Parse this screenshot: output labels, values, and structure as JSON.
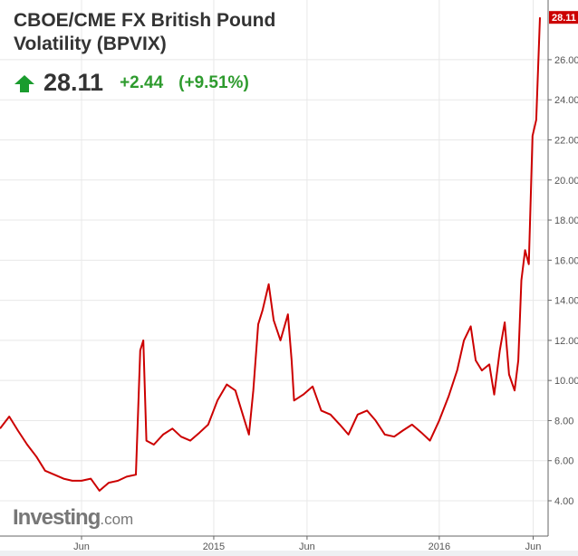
{
  "header": {
    "title": "CBOE/CME FX British Pound Volatility (BPVIX)",
    "price": "28.11",
    "change": "+2.44",
    "change_pct": "(+9.51%)",
    "direction_icon": "arrow-up-icon",
    "up_color": "#1a9c2e"
  },
  "logo": {
    "name": "Investing",
    "suffix": ".com"
  },
  "chart_data": {
    "type": "line",
    "title": "CBOE/CME FX British Pound Volatility (BPVIX)",
    "xlabel": "",
    "ylabel": "",
    "ylim": [
      3,
      28.6
    ],
    "xlim": [
      "2014-01-20",
      "2016-06-15"
    ],
    "y_ticks": [
      "4.00",
      "6.00",
      "8.00",
      "10.00",
      "12.00",
      "14.00",
      "16.00",
      "18.00",
      "20.00",
      "22.00",
      "24.00",
      "26.00"
    ],
    "x_ticks": [
      {
        "label": "Jun",
        "date": "2014-06-01"
      },
      {
        "label": "2015",
        "date": "2015-01-01"
      },
      {
        "label": "Jun",
        "date": "2015-06-01"
      },
      {
        "label": "2016",
        "date": "2016-01-01"
      },
      {
        "label": "Jun",
        "date": "2016-06-01"
      }
    ],
    "last_value_label": "28.11",
    "grid": true,
    "line_color": "#cc0000",
    "series": [
      {
        "x": [
          "2014-01-20",
          "2014-02-04",
          "2014-02-18",
          "2014-03-05",
          "2014-03-20",
          "2014-04-03",
          "2014-04-18",
          "2014-05-03",
          "2014-05-17",
          "2014-06-01",
          "2014-06-16",
          "2014-06-30",
          "2014-07-15",
          "2014-07-30",
          "2014-08-13",
          "2014-08-28",
          "2014-09-04",
          "2014-09-09",
          "2014-09-14",
          "2014-09-26",
          "2014-10-11",
          "2014-10-26",
          "2014-11-09",
          "2014-11-24",
          "2014-12-09",
          "2014-12-23",
          "2015-01-07",
          "2015-01-22",
          "2015-02-05",
          "2015-02-20",
          "2015-02-27",
          "2015-03-06",
          "2015-03-14",
          "2015-03-21",
          "2015-03-31",
          "2015-04-08",
          "2015-04-19",
          "2015-05-01",
          "2015-05-07",
          "2015-05-11",
          "2015-05-26",
          "2015-06-10",
          "2015-06-24",
          "2015-07-09",
          "2015-07-24",
          "2015-08-07",
          "2015-08-22",
          "2015-09-06",
          "2015-09-20",
          "2015-10-05",
          "2015-10-20",
          "2015-11-03",
          "2015-11-18",
          "2015-12-03",
          "2015-12-17",
          "2016-01-01",
          "2016-01-16",
          "2016-01-30",
          "2016-02-10",
          "2016-02-21",
          "2016-02-29",
          "2016-03-10",
          "2016-03-22",
          "2016-03-30",
          "2016-04-08",
          "2016-04-16",
          "2016-04-23",
          "2016-05-02",
          "2016-05-08",
          "2016-05-13",
          "2016-05-19",
          "2016-05-25",
          "2016-05-31",
          "2016-06-06",
          "2016-06-12"
        ],
        "y": [
          7.6,
          8.2,
          7.5,
          6.8,
          6.2,
          5.5,
          5.3,
          5.1,
          5.0,
          5.0,
          5.1,
          4.5,
          4.9,
          5.0,
          5.2,
          5.3,
          11.5,
          12.0,
          7.0,
          6.8,
          7.3,
          7.6,
          7.2,
          7.0,
          7.4,
          7.8,
          9.0,
          9.8,
          9.5,
          8.0,
          7.3,
          9.5,
          12.8,
          13.5,
          14.8,
          13.0,
          12.0,
          13.3,
          11.0,
          9.0,
          9.3,
          9.7,
          8.5,
          8.3,
          7.8,
          7.3,
          8.3,
          8.5,
          8.0,
          7.3,
          7.2,
          7.5,
          7.8,
          7.4,
          7.0,
          8.0,
          9.2,
          10.5,
          12.0,
          12.7,
          11.0,
          10.5,
          10.8,
          9.3,
          11.5,
          12.9,
          10.3,
          9.5,
          11.0,
          15.0,
          16.5,
          15.8,
          22.2,
          23.0,
          28.11
        ]
      }
    ]
  }
}
